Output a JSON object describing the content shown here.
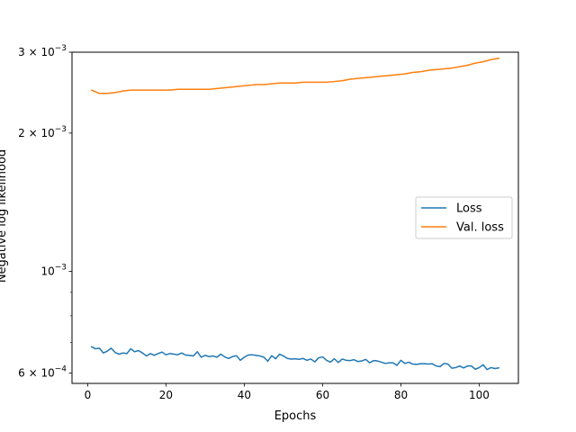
{
  "chart_data": {
    "type": "line",
    "xlabel": "Epochs",
    "ylabel": "Negative log likelihood",
    "yscale": "log",
    "xlim": [
      -4,
      110
    ],
    "ylim": [
      0.00057,
      0.003
    ],
    "grid": false,
    "legend_position": "center-right",
    "x_ticks": [
      0,
      20,
      40,
      60,
      80,
      100
    ],
    "x_tick_labels": [
      "0",
      "20",
      "40",
      "60",
      "80",
      "100"
    ],
    "y_ticks": [
      {
        "value": 0.0006,
        "mantissa": "6",
        "base": "10",
        "exponent": "−4"
      },
      {
        "value": 0.001,
        "mantissa": "",
        "base": "10",
        "exponent": "−3"
      },
      {
        "value": 0.002,
        "mantissa": "2",
        "base": "10",
        "exponent": "−3"
      },
      {
        "value": 0.003,
        "mantissa": "3",
        "base": "10",
        "exponent": "−3"
      }
    ],
    "y_minor_ticks": [
      0.0007,
      0.0008,
      0.0009
    ],
    "series": [
      {
        "name": "Loss",
        "color": "#1f77b4",
        "x": [
          1,
          2,
          3,
          4,
          5,
          6,
          7,
          8,
          9,
          10,
          11,
          12,
          13,
          14,
          15,
          16,
          17,
          18,
          19,
          20,
          21,
          22,
          23,
          24,
          25,
          26,
          27,
          28,
          29,
          30,
          31,
          32,
          33,
          34,
          35,
          36,
          37,
          38,
          39,
          40,
          41,
          42,
          43,
          44,
          45,
          46,
          47,
          48,
          49,
          50,
          51,
          52,
          53,
          54,
          55,
          56,
          57,
          58,
          59,
          60,
          61,
          62,
          63,
          64,
          65,
          66,
          67,
          68,
          69,
          70,
          71,
          72,
          73,
          74,
          75,
          76,
          77,
          78,
          79,
          80,
          81,
          82,
          83,
          84,
          85,
          86,
          87,
          88,
          89,
          90,
          91,
          92,
          93,
          94,
          95,
          96,
          97,
          98,
          99,
          100,
          101,
          102,
          103,
          104,
          105
        ],
        "y": [
          0.000685,
          0.000678,
          0.00068,
          0.000664,
          0.00067,
          0.00068,
          0.000666,
          0.00066,
          0.000664,
          0.000662,
          0.000678,
          0.000668,
          0.000672,
          0.000664,
          0.000654,
          0.000662,
          0.000656,
          0.000662,
          0.000667,
          0.000658,
          0.000662,
          0.00066,
          0.000658,
          0.000664,
          0.000657,
          0.000656,
          0.000654,
          0.000668,
          0.00065,
          0.000656,
          0.000652,
          0.000654,
          0.00065,
          0.00066,
          0.000651,
          0.000646,
          0.000652,
          0.000655,
          0.00064,
          0.00065,
          0.000657,
          0.000658,
          0.000656,
          0.000654,
          0.00065,
          0.000637,
          0.000655,
          0.000645,
          0.00066,
          0.000654,
          0.000646,
          0.000644,
          0.000645,
          0.000643,
          0.000646,
          0.00064,
          0.000644,
          0.000635,
          0.000648,
          0.000651,
          0.00064,
          0.000634,
          0.000645,
          0.000633,
          0.000644,
          0.00064,
          0.000639,
          0.000642,
          0.000636,
          0.000638,
          0.000643,
          0.000632,
          0.000639,
          0.000638,
          0.000634,
          0.00063,
          0.000632,
          0.000632,
          0.000624,
          0.00064,
          0.00063,
          0.000634,
          0.000628,
          0.000627,
          0.000629,
          0.000629,
          0.000628,
          0.000629,
          0.000622,
          0.00062,
          0.00063,
          0.000628,
          0.000615,
          0.000617,
          0.000622,
          0.000616,
          0.000622,
          0.000622,
          0.000612,
          0.000617,
          0.000626,
          0.000611,
          0.000617,
          0.000614,
          0.000616
        ]
      },
      {
        "name": "Val. loss",
        "color": "#ff7f0e",
        "x": [
          1,
          2,
          3,
          5,
          7,
          9,
          11,
          13,
          15,
          17,
          19,
          21,
          23,
          25,
          27,
          29,
          31,
          33,
          35,
          37,
          39,
          41,
          43,
          45,
          47,
          49,
          51,
          53,
          55,
          57,
          59,
          61,
          63,
          65,
          67,
          69,
          71,
          73,
          75,
          77,
          79,
          81,
          83,
          85,
          87,
          89,
          91,
          93,
          95,
          97,
          99,
          101,
          103,
          105
        ],
        "y": [
          0.00248,
          0.00246,
          0.00244,
          0.00244,
          0.00245,
          0.00247,
          0.00248,
          0.00248,
          0.00248,
          0.00248,
          0.00248,
          0.00248,
          0.00249,
          0.00249,
          0.00249,
          0.00249,
          0.00249,
          0.0025,
          0.00251,
          0.00252,
          0.00253,
          0.00254,
          0.00255,
          0.00255,
          0.00256,
          0.00257,
          0.00257,
          0.00257,
          0.00258,
          0.00258,
          0.00258,
          0.00258,
          0.00259,
          0.0026,
          0.00262,
          0.00263,
          0.00264,
          0.00265,
          0.00266,
          0.00267,
          0.00268,
          0.00269,
          0.00271,
          0.00272,
          0.00274,
          0.00275,
          0.00276,
          0.00277,
          0.00279,
          0.00281,
          0.00284,
          0.00286,
          0.00289,
          0.00291
        ]
      }
    ]
  }
}
